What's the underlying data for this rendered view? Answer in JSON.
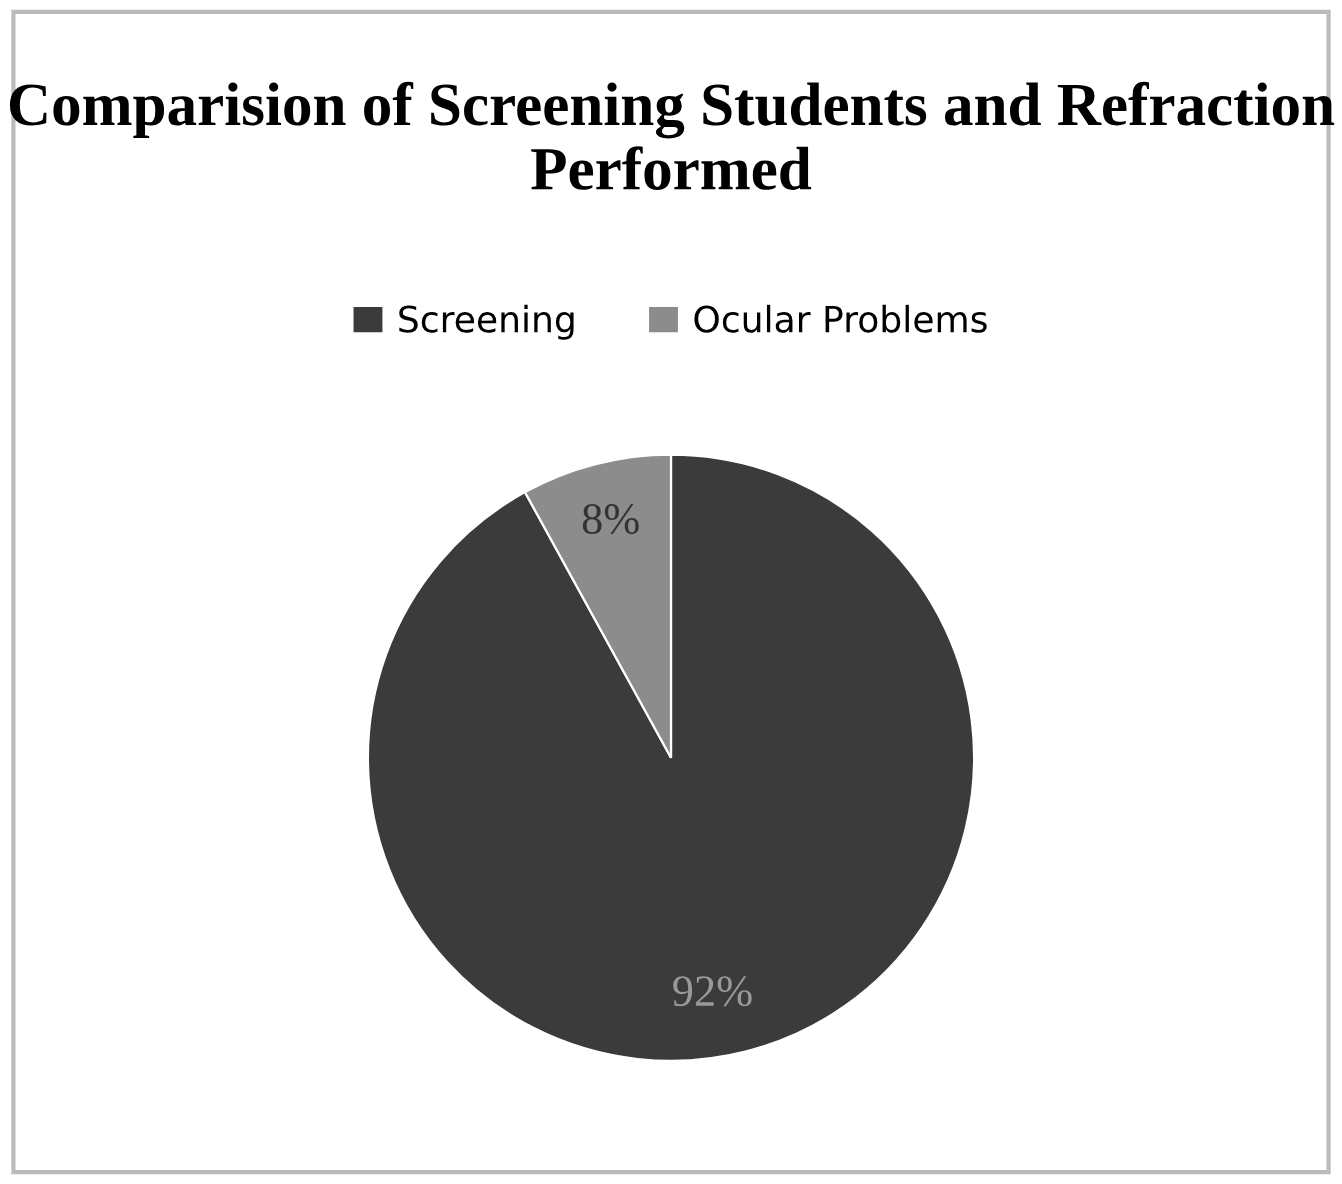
{
  "chart_data": {
    "type": "pie",
    "title": "Comparision of Screening Students and Refraction Performed",
    "categories": [
      "Screening",
      "Ocular Problems"
    ],
    "values": [
      92,
      8
    ],
    "colors": [
      "#3b3b3b",
      "#8c8c8c"
    ],
    "value_labels": [
      "92%",
      "8%"
    ],
    "legend": "top"
  }
}
